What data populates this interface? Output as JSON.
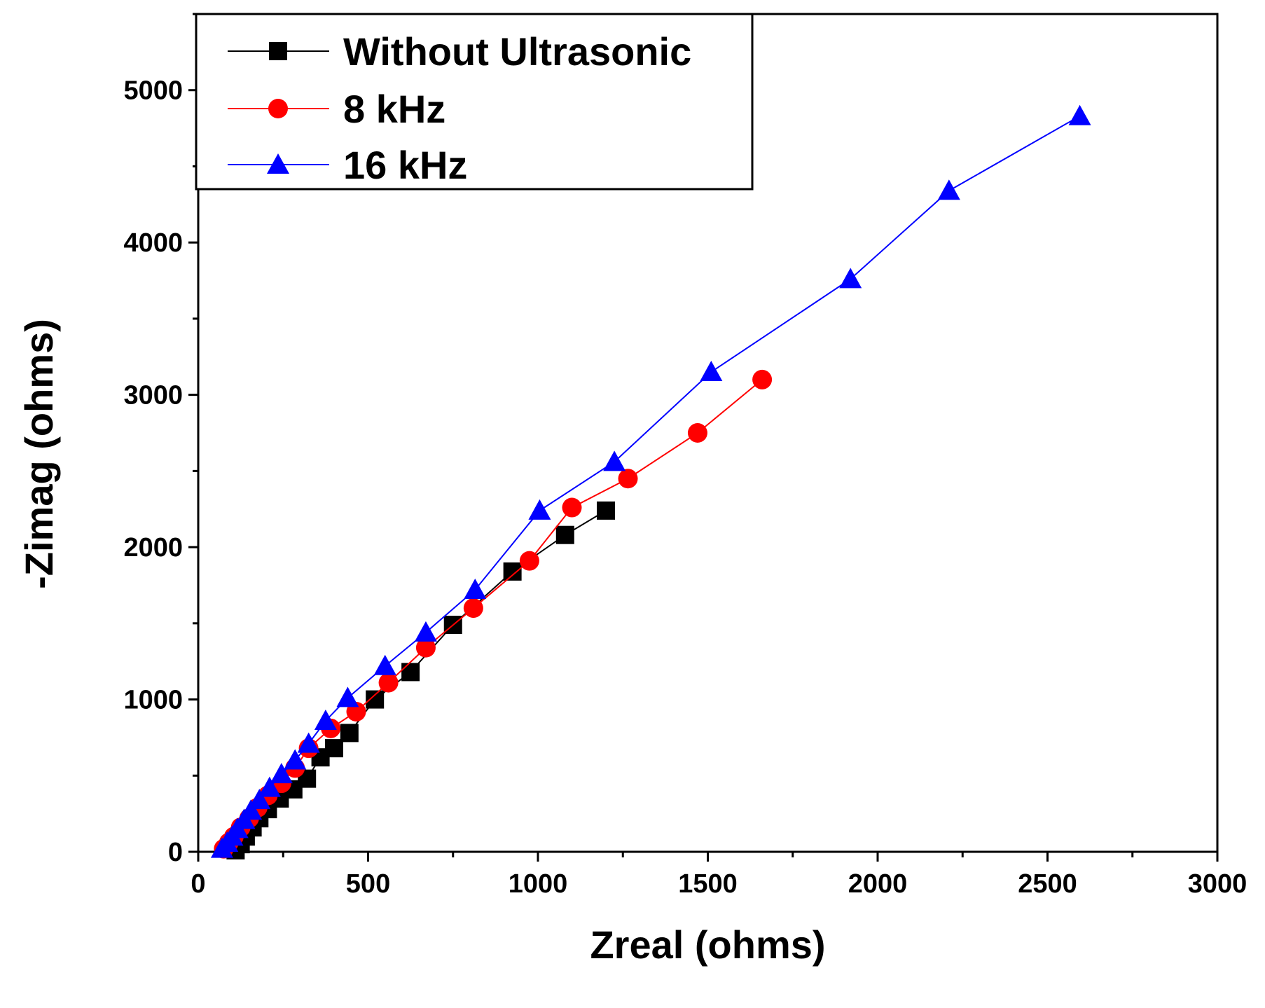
{
  "chart_data": {
    "type": "scatter",
    "title": "",
    "xlabel": "Zreal (ohms)",
    "ylabel": "-Zimag (ohms)",
    "xlim": [
      0,
      3000
    ],
    "ylim": [
      0,
      5500
    ],
    "xticks": [
      0,
      500,
      1000,
      1500,
      2000,
      2500,
      3000
    ],
    "yticks": [
      0,
      1000,
      2000,
      3000,
      4000,
      5000
    ],
    "xtick_labels": [
      "0",
      "500",
      "1000",
      "1500",
      "2000",
      "2500",
      "3000"
    ],
    "ytick_labels": [
      "0",
      "1000",
      "2000",
      "3000",
      "4000",
      "5000"
    ],
    "legend_position": "top-left",
    "series": [
      {
        "name": "Without Ultrasonic",
        "color": "#000000",
        "marker": "square",
        "x": [
          110,
          125,
          140,
          160,
          180,
          205,
          240,
          280,
          320,
          360,
          400,
          445,
          520,
          625,
          750,
          925,
          1080,
          1200
        ],
        "y": [
          10,
          50,
          100,
          160,
          220,
          280,
          350,
          410,
          480,
          620,
          680,
          780,
          1000,
          1180,
          1490,
          1840,
          2080,
          2240
        ]
      },
      {
        "name": "8 kHz",
        "color": "#ff0000",
        "marker": "circle",
        "x": [
          75,
          90,
          105,
          125,
          150,
          175,
          205,
          245,
          285,
          325,
          390,
          465,
          560,
          670,
          810,
          975,
          1100,
          1265,
          1470,
          1660
        ],
        "y": [
          20,
          60,
          100,
          160,
          220,
          290,
          370,
          450,
          550,
          680,
          810,
          920,
          1110,
          1340,
          1600,
          1910,
          2260,
          2450,
          2750,
          3100
        ]
      },
      {
        "name": "16 kHz",
        "color": "#0000ff",
        "marker": "triangle",
        "x": [
          70,
          85,
          100,
          115,
          135,
          155,
          180,
          210,
          245,
          285,
          325,
          375,
          440,
          550,
          670,
          815,
          1005,
          1225,
          1510,
          1920,
          2210,
          2595
        ],
        "y": [
          20,
          60,
          100,
          150,
          210,
          270,
          340,
          420,
          510,
          600,
          710,
          860,
          1010,
          1220,
          1440,
          1720,
          2240,
          2560,
          3150,
          3760,
          4340,
          4830
        ]
      }
    ]
  }
}
